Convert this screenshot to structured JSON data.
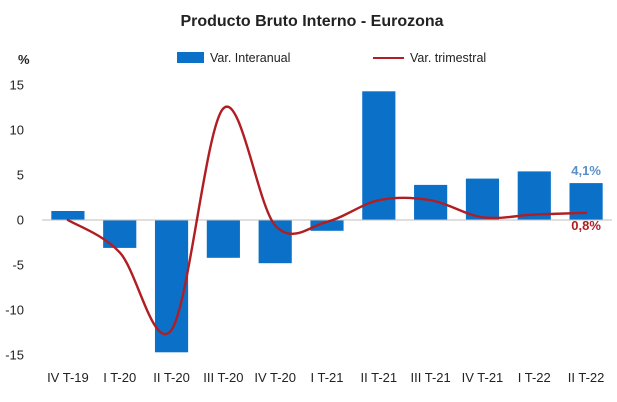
{
  "chart_data": {
    "type": "bar",
    "title": "Producto Bruto Interno - Eurozona",
    "ylabel": "%",
    "xlabel": "",
    "ylim": [
      -15,
      15
    ],
    "yticks": [
      15,
      10,
      5,
      0,
      -5,
      -10,
      -15
    ],
    "categories": [
      "IV T-19",
      "I T-20",
      "II T-20",
      "III T-20",
      "IV T-20",
      "I T-21",
      "II T-21",
      "III T-21",
      "IV T-21",
      "I T-22",
      "II T-22"
    ],
    "series": [
      {
        "name": "Var. Interanual",
        "kind": "bar",
        "color": "#0B70C8",
        "values": [
          1.0,
          -3.1,
          -14.7,
          -4.2,
          -4.8,
          -1.2,
          14.3,
          3.9,
          4.6,
          5.4,
          4.1
        ]
      },
      {
        "name": "Var. trimestral",
        "kind": "line",
        "color": "#B01E23",
        "values": [
          0.0,
          -3.6,
          -12.2,
          12.4,
          -0.6,
          -0.2,
          2.2,
          2.2,
          0.3,
          0.6,
          0.8
        ]
      }
    ],
    "legend_position": "top",
    "data_labels": [
      {
        "series": "Var. Interanual",
        "index": 10,
        "text": "4,1%",
        "color": "#5B8FC9"
      },
      {
        "series": "Var. trimestral",
        "index": 10,
        "text": "0,8%",
        "color": "#B01E23"
      }
    ]
  }
}
